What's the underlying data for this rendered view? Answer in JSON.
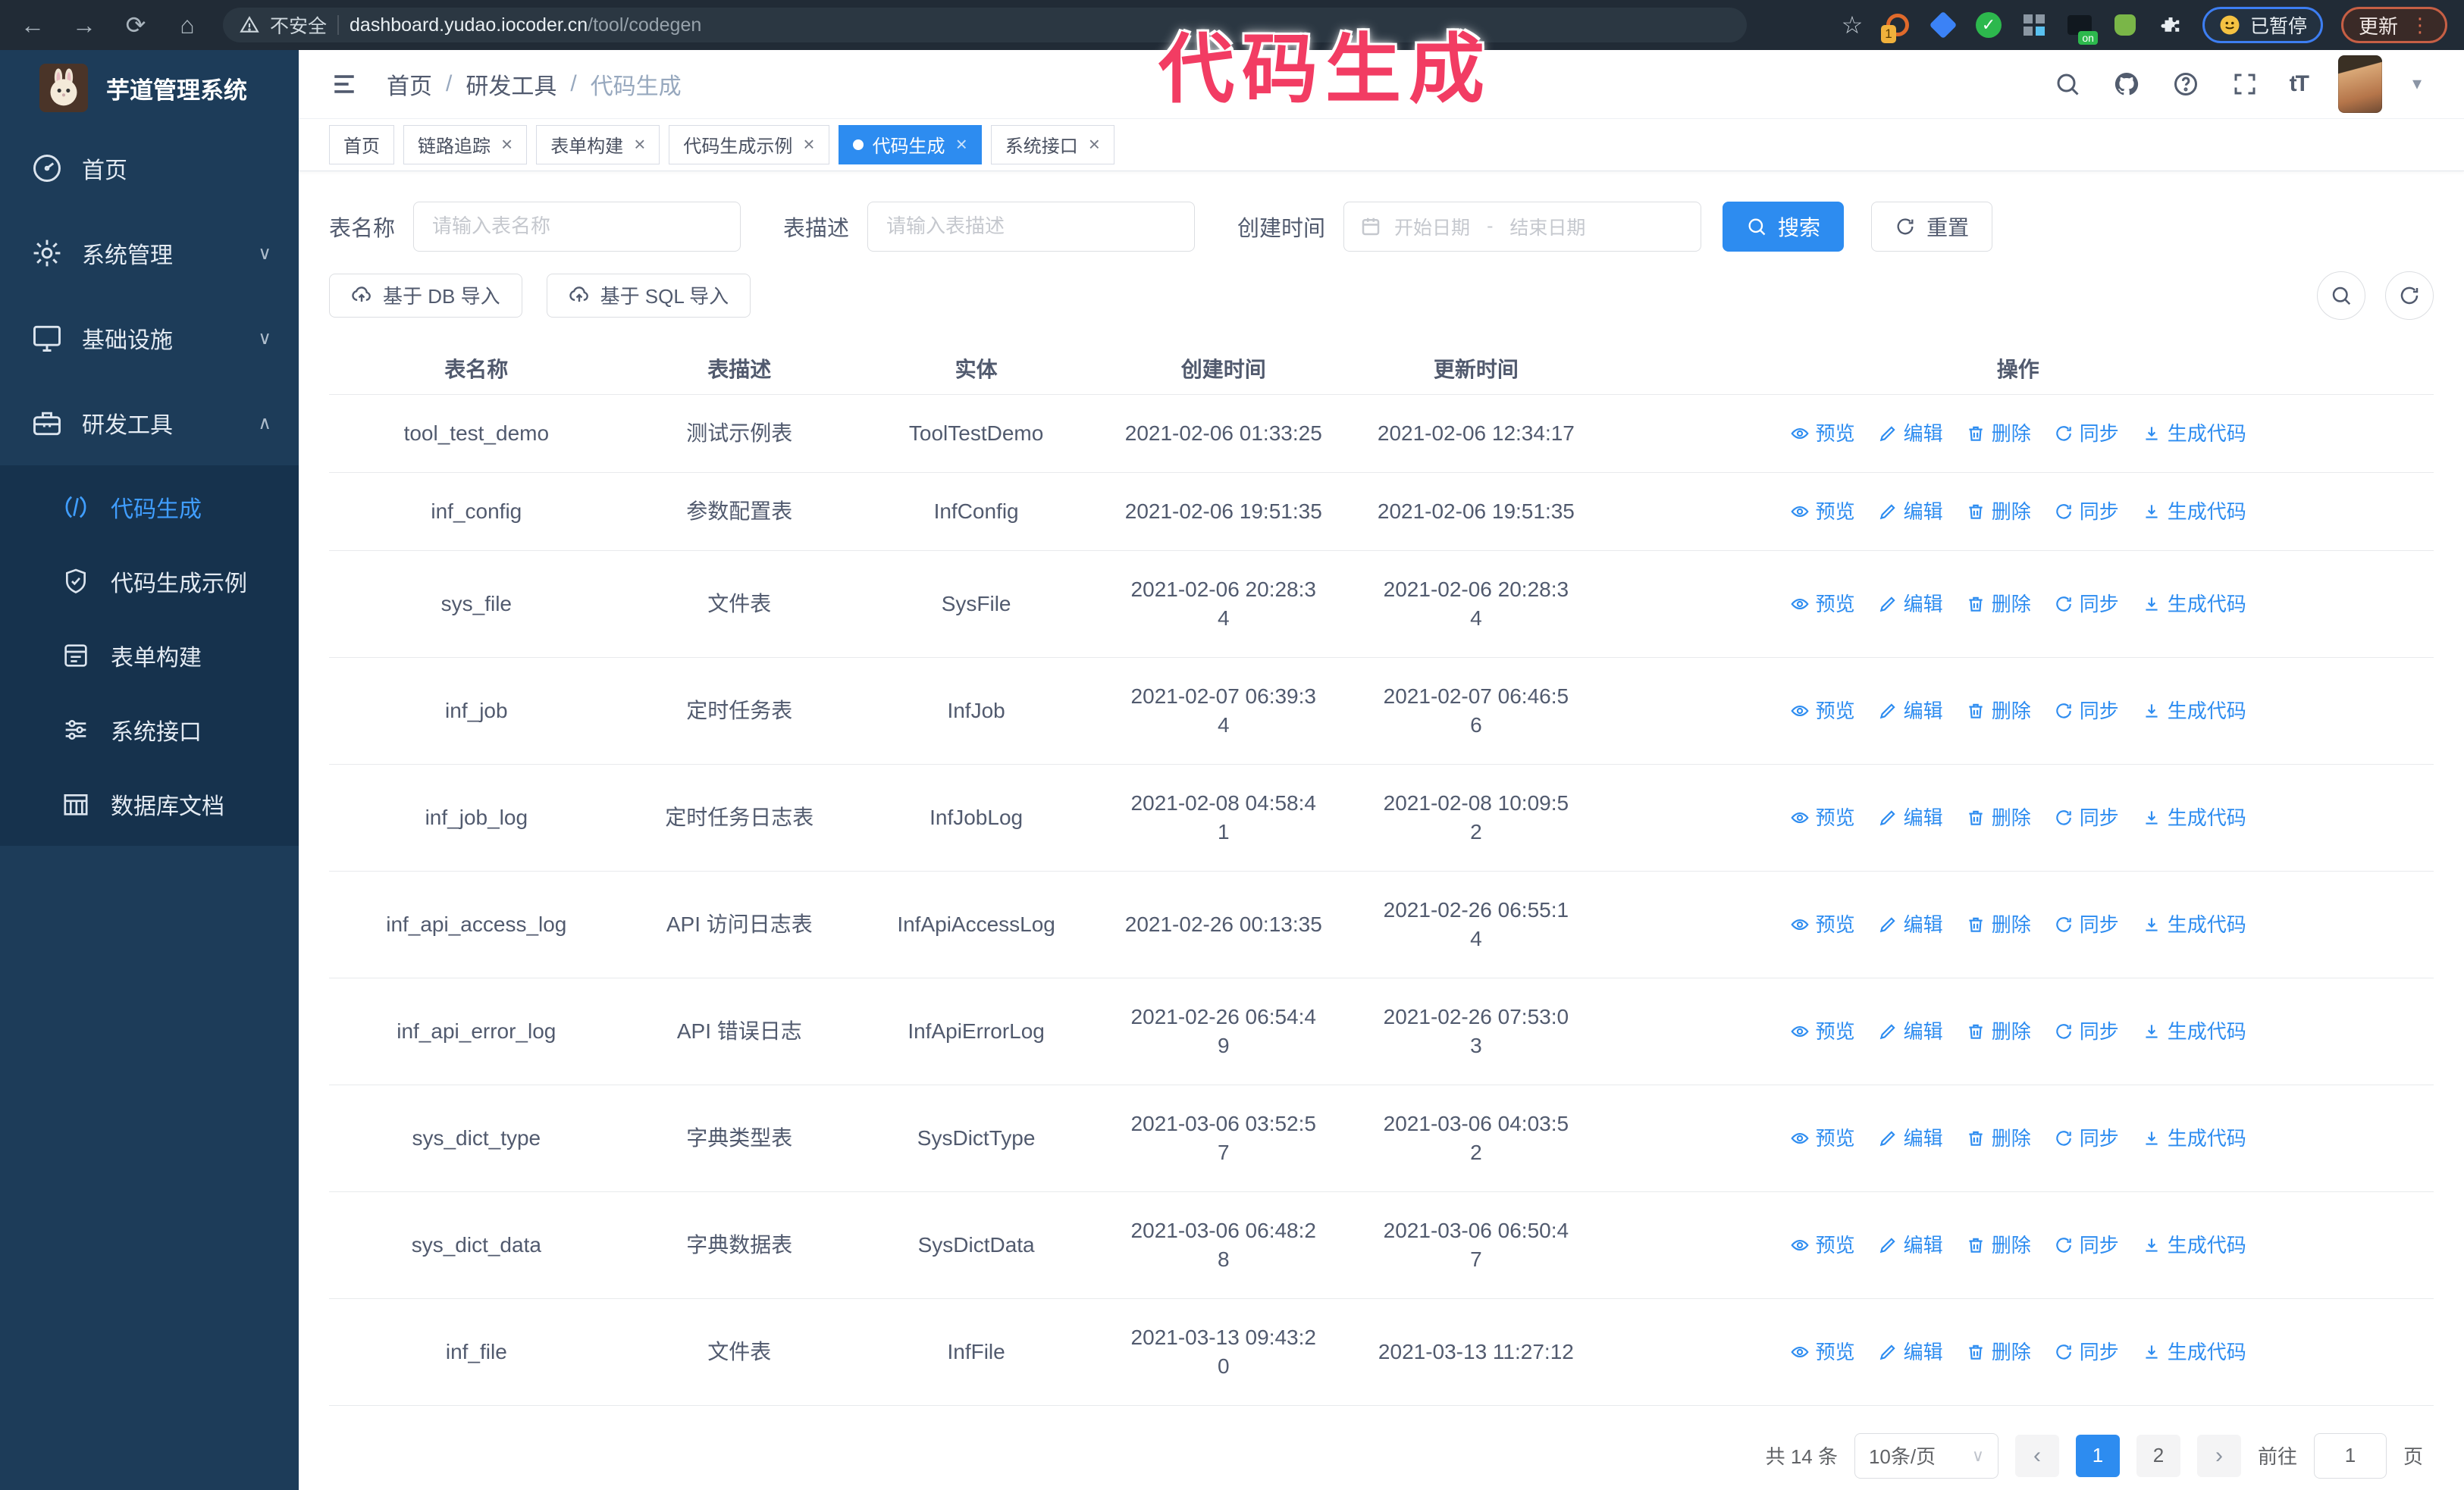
{
  "colors": {
    "primary": "#2d8cf0",
    "watermark_pink": "#f23c63",
    "sidebar_bg": "#1d3c59"
  },
  "watermark": "代码生成",
  "browser": {
    "security_label": "不安全",
    "url_host": "dashboard.yudao.iocoder.cn",
    "url_path": "/tool/codegen",
    "paused_badge": "已暂停",
    "update_label": "更新"
  },
  "sidebar": {
    "app_title": "芋道管理系统",
    "items": [
      {
        "label": "首页",
        "icon": "dashboard",
        "expandable": false,
        "expanded": false
      },
      {
        "label": "系统管理",
        "icon": "gear",
        "expandable": true,
        "expanded": false
      },
      {
        "label": "基础设施",
        "icon": "monitor",
        "expandable": true,
        "expanded": false
      },
      {
        "label": "研发工具",
        "icon": "toolbox",
        "expandable": true,
        "expanded": true
      }
    ],
    "submenu": [
      {
        "label": "代码生成",
        "icon": "code",
        "active": true
      },
      {
        "label": "代码生成示例",
        "icon": "shield",
        "active": false
      },
      {
        "label": "表单构建",
        "icon": "form",
        "active": false
      },
      {
        "label": "系统接口",
        "icon": "sliders",
        "active": false
      },
      {
        "label": "数据库文档",
        "icon": "database",
        "active": false
      }
    ]
  },
  "header": {
    "breadcrumb": [
      "首页",
      "研发工具",
      "代码生成"
    ]
  },
  "tabs": [
    {
      "label": "首页",
      "closable": false,
      "active": false
    },
    {
      "label": "链路追踪",
      "closable": true,
      "active": false
    },
    {
      "label": "表单构建",
      "closable": true,
      "active": false
    },
    {
      "label": "代码生成示例",
      "closable": true,
      "active": false
    },
    {
      "label": "代码生成",
      "closable": true,
      "active": true
    },
    {
      "label": "系统接口",
      "closable": true,
      "active": false
    }
  ],
  "filters": {
    "table_name_label": "表名称",
    "table_name_placeholder": "请输入表名称",
    "table_desc_label": "表描述",
    "table_desc_placeholder": "请输入表描述",
    "create_time_label": "创建时间",
    "date_start_placeholder": "开始日期",
    "date_separator": "-",
    "date_end_placeholder": "结束日期",
    "search_label": "搜索",
    "reset_label": "重置"
  },
  "toolbar": {
    "import_db_label": "基于 DB 导入",
    "import_sql_label": "基于 SQL 导入"
  },
  "table": {
    "columns": [
      "表名称",
      "表描述",
      "实体",
      "创建时间",
      "更新时间",
      "操作"
    ],
    "actions": [
      "预览",
      "编辑",
      "删除",
      "同步",
      "生成代码"
    ],
    "rows": [
      {
        "name": "tool_test_demo",
        "desc": "测试示例表",
        "entity": "ToolTestDemo",
        "created": "2021-02-06 01:33:25",
        "updated": "2021-02-06 12:34:17"
      },
      {
        "name": "inf_config",
        "desc": "参数配置表",
        "entity": "InfConfig",
        "created": "2021-02-06 19:51:35",
        "updated": "2021-02-06 19:51:35"
      },
      {
        "name": "sys_file",
        "desc": "文件表",
        "entity": "SysFile",
        "created": "2021-02-06 20:28:3\n4",
        "updated": "2021-02-06 20:28:3\n4"
      },
      {
        "name": "inf_job",
        "desc": "定时任务表",
        "entity": "InfJob",
        "created": "2021-02-07 06:39:3\n4",
        "updated": "2021-02-07 06:46:5\n6"
      },
      {
        "name": "inf_job_log",
        "desc": "定时任务日志表",
        "entity": "InfJobLog",
        "created": "2021-02-08 04:58:4\n1",
        "updated": "2021-02-08 10:09:5\n2"
      },
      {
        "name": "inf_api_access_log",
        "desc": "API 访问日志表",
        "entity": "InfApiAccessLog",
        "created": "2021-02-26 00:13:35",
        "updated": "2021-02-26 06:55:1\n4"
      },
      {
        "name": "inf_api_error_log",
        "desc": "API 错误日志",
        "entity": "InfApiErrorLog",
        "created": "2021-02-26 06:54:4\n9",
        "updated": "2021-02-26 07:53:0\n3"
      },
      {
        "name": "sys_dict_type",
        "desc": "字典类型表",
        "entity": "SysDictType",
        "created": "2021-03-06 03:52:5\n7",
        "updated": "2021-03-06 04:03:5\n2"
      },
      {
        "name": "sys_dict_data",
        "desc": "字典数据表",
        "entity": "SysDictData",
        "created": "2021-03-06 06:48:2\n8",
        "updated": "2021-03-06 06:50:4\n7"
      },
      {
        "name": "inf_file",
        "desc": "文件表",
        "entity": "InfFile",
        "created": "2021-03-13 09:43:2\n0",
        "updated": "2021-03-13 11:27:12"
      }
    ]
  },
  "pagination": {
    "total_label": "共 14 条",
    "page_size": "10条/页",
    "pages": [
      "1",
      "2"
    ],
    "active_page": "1",
    "prev_label": "‹",
    "next_label": "›",
    "goto_label": "前往",
    "goto_value": "1",
    "page_unit": "页"
  }
}
